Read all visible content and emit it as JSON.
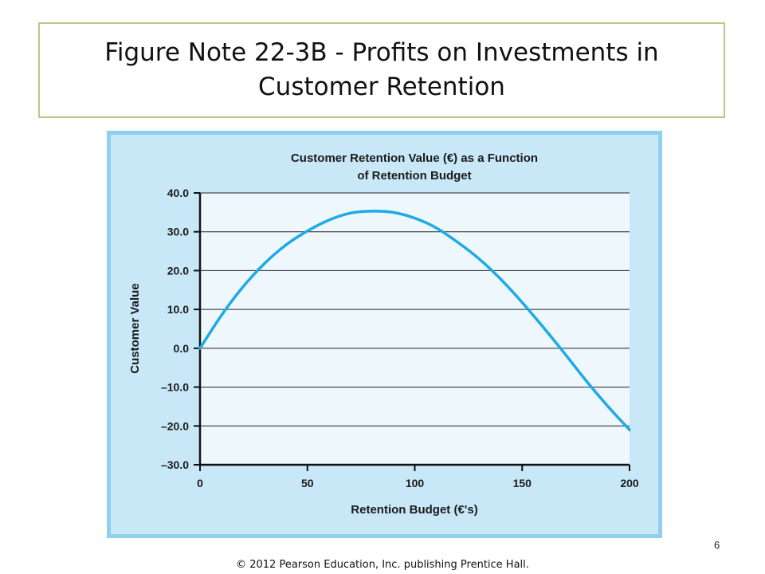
{
  "slide": {
    "title": "Figure Note 22-3B - Profits on Investments in Customer Retention",
    "page_number": "6",
    "copyright": "© 2012 Pearson Education, Inc. publishing Prentice Hall."
  },
  "colors": {
    "frame_fill": "#c8e8f8",
    "frame_border": "#8fd0ec",
    "plot_fill": "#eef8fc",
    "curve": "#1eaae6",
    "title_border": "#b5c989"
  },
  "chart_data": {
    "type": "line",
    "title_lines": [
      "Customer Retention Value (€) as a Function",
      "of Retention Budget"
    ],
    "xlabel": "Retention Budget (€'s)",
    "ylabel": "Customer Value",
    "xlim": [
      0,
      200
    ],
    "ylim": [
      -30,
      40
    ],
    "x_ticks": [
      "0",
      "50",
      "100",
      "150",
      "200"
    ],
    "y_ticks": [
      "40.0",
      "30.0",
      "20.0",
      "10.0",
      "0.0",
      "–10.0",
      "–20.0",
      "–30.0"
    ],
    "grid": true,
    "series": [
      {
        "x": [
          0,
          10,
          20,
          30,
          40,
          50,
          60,
          70,
          80,
          90,
          100,
          110,
          120,
          130,
          140,
          150,
          160,
          170,
          180,
          190,
          200
        ],
        "y": [
          0.0,
          8.5,
          15.8,
          21.8,
          26.6,
          30.2,
          33.0,
          34.8,
          35.3,
          35.0,
          33.5,
          31.0,
          27.3,
          23.0,
          17.8,
          11.8,
          5.3,
          -1.5,
          -8.5,
          -15.0,
          -21.0
        ]
      }
    ]
  }
}
